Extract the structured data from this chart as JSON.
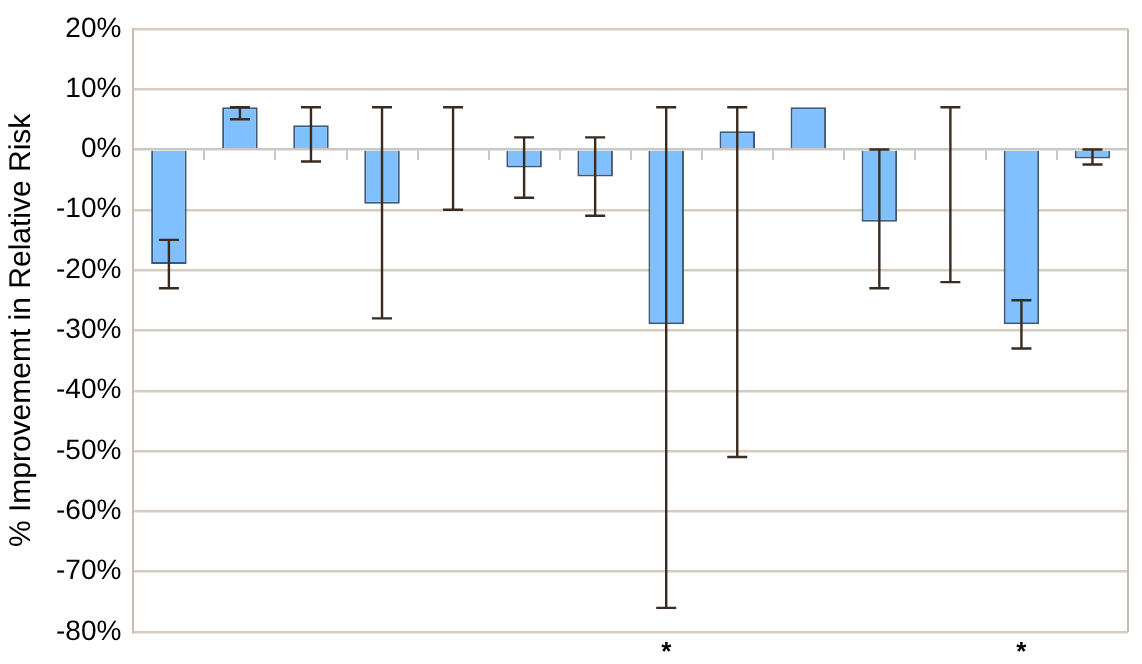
{
  "chart_data": {
    "type": "bar",
    "ylabel": "% Improvememt in Relative Risk",
    "categories": [
      null,
      null,
      null,
      null,
      null,
      null,
      null,
      null,
      null,
      null,
      null,
      null,
      null,
      null
    ],
    "values": [
      -19,
      7,
      4,
      -9,
      0,
      -3,
      -4.5,
      -29,
      3,
      7,
      -12,
      0,
      -29,
      -1.5
    ],
    "errors": [
      [
        -23,
        -15
      ],
      [
        5,
        7
      ],
      [
        -2,
        7
      ],
      [
        -28,
        7
      ],
      [
        -10,
        7
      ],
      [
        -8,
        2
      ],
      [
        -11,
        2
      ],
      [
        -76,
        7
      ],
      [
        -51,
        7
      ],
      null,
      [
        -23,
        0
      ],
      [
        -22,
        7
      ],
      [
        -33,
        -25
      ],
      [
        -2.5,
        0
      ]
    ],
    "value_labels": [
      null,
      null,
      null,
      null,
      null,
      null,
      null,
      "*",
      null,
      null,
      null,
      null,
      "*",
      null
    ],
    "color": "#80c0ff",
    "ylim": [
      -80,
      20
    ],
    "yticks": [
      {
        "value": -80,
        "label": "-80%"
      },
      {
        "value": -70,
        "label": "-70%"
      },
      {
        "value": -60,
        "label": "-60%"
      },
      {
        "value": -50,
        "label": "-50%"
      },
      {
        "value": -40,
        "label": "-40%"
      },
      {
        "value": -30,
        "label": "-30%"
      },
      {
        "value": -20,
        "label": "-20%"
      },
      {
        "value": -10,
        "label": "-10%"
      },
      {
        "value": 0,
        "label": "0%"
      },
      {
        "value": 10,
        "label": "10%"
      },
      {
        "value": 20,
        "label": "20%"
      }
    ],
    "grid": "y"
  }
}
